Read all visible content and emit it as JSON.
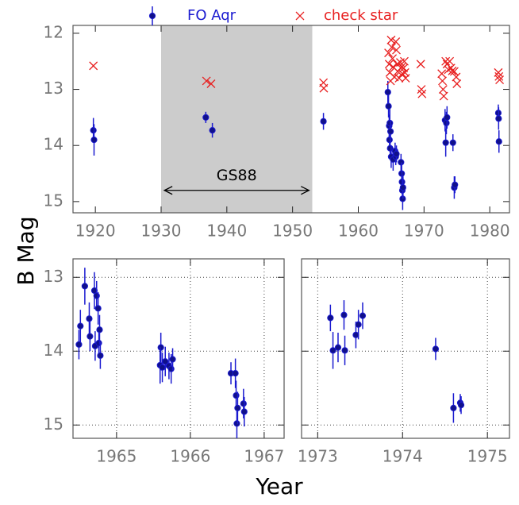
{
  "chart_data": [
    {
      "type": "scatter",
      "ylabel": "B Mag",
      "legend": "top",
      "grid": false,
      "xlim": [
        1916.6,
        1983
      ],
      "ylim": [
        15.2,
        11.86
      ],
      "xticks": [
        1920,
        1930,
        1940,
        1950,
        1960,
        1970,
        1980
      ],
      "yticks": [
        12,
        13,
        14,
        15
      ],
      "span": [
        1930,
        1953
      ],
      "span_color": "#cccccc",
      "annotation": {
        "text": "GS88",
        "x": [
          1930.5,
          1952.5
        ],
        "y": 14.8
      },
      "series": [
        {
          "name": "FO Aqr",
          "color": "#1a1ad0",
          "marker": "dot",
          "x": [
            1919.7,
            1919.8,
            1936.8,
            1937.8,
            1954.7,
            1964.5,
            1964.6,
            1964.7,
            1964.75,
            1964.8,
            1964.85,
            1964.9,
            1965.0,
            1965.3,
            1965.6,
            1965.7,
            1965.8,
            1966.5,
            1966.6,
            1966.65,
            1966.7,
            1966.75,
            1966.8,
            1973.2,
            1973.3,
            1973.4,
            1973.5,
            1974.4,
            1974.6,
            1974.7,
            1981.3,
            1981.35,
            1981.4
          ],
          "values": [
            13.73,
            13.9,
            13.5,
            13.73,
            13.57,
            13.05,
            13.3,
            13.65,
            13.9,
            13.6,
            14.05,
            13.75,
            14.2,
            14.25,
            14.1,
            14.2,
            14.15,
            14.3,
            14.5,
            14.65,
            14.8,
            14.95,
            14.75,
            13.55,
            13.95,
            13.6,
            13.5,
            13.95,
            14.75,
            14.7,
            13.42,
            13.52,
            13.93
          ],
          "errors": [
            0.22,
            0.28,
            0.1,
            0.13,
            0.15,
            0.2,
            0.2,
            0.2,
            0.2,
            0.25,
            0.2,
            0.2,
            0.2,
            0.2,
            0.15,
            0.15,
            0.15,
            0.15,
            0.2,
            0.2,
            0.2,
            0.2,
            0.2,
            0.2,
            0.25,
            0.2,
            0.2,
            0.15,
            0.2,
            0.15,
            0.15,
            0.2,
            0.2
          ]
        },
        {
          "name": "check star",
          "color": "#e82020",
          "marker": "cross",
          "x": [
            1919.7,
            1936.9,
            1937.6,
            1954.7,
            1954.75,
            1964.6,
            1964.7,
            1964.8,
            1964.9,
            1965.0,
            1965.1,
            1965.2,
            1965.3,
            1965.5,
            1965.7,
            1965.8,
            1965.9,
            1966.0,
            1966.2,
            1966.4,
            1966.6,
            1966.7,
            1966.9,
            1967.0,
            1967.1,
            1967.2,
            1969.5,
            1969.6,
            1969.7,
            1972.7,
            1972.8,
            1972.9,
            1973.0,
            1973.3,
            1973.5,
            1973.7,
            1973.9,
            1974.1,
            1974.3,
            1974.6,
            1974.9,
            1975.0,
            1981.3,
            1981.4,
            1981.5
          ],
          "values": [
            12.58,
            12.85,
            12.9,
            12.88,
            12.98,
            12.35,
            12.55,
            12.7,
            12.85,
            12.12,
            12.25,
            12.45,
            12.6,
            12.78,
            12.15,
            12.3,
            12.55,
            12.68,
            12.8,
            12.52,
            12.6,
            12.72,
            12.62,
            12.5,
            12.7,
            12.8,
            12.55,
            13.0,
            13.08,
            12.72,
            12.85,
            13.0,
            13.12,
            12.5,
            12.55,
            12.65,
            12.5,
            12.62,
            12.67,
            12.68,
            12.78,
            12.9,
            12.7,
            12.77,
            12.83
          ]
        }
      ]
    },
    {
      "type": "scatter",
      "xlabel": "Year",
      "grid": true,
      "xlim": [
        1964.41,
        1967.27
      ],
      "ylim": [
        15.18,
        12.75
      ],
      "xticks": [
        1965,
        1966,
        1967
      ],
      "yticks": [
        13,
        14,
        15
      ],
      "series": [
        {
          "color": "#1a1ad0",
          "marker": "dot",
          "x": [
            1964.49,
            1964.51,
            1964.57,
            1964.63,
            1964.64,
            1964.7,
            1964.71,
            1964.73,
            1964.75,
            1964.76,
            1964.77,
            1964.78,
            1965.6,
            1965.59,
            1965.62,
            1965.66,
            1965.71,
            1965.74,
            1965.76,
            1966.55,
            1966.61,
            1966.62,
            1966.63,
            1966.64,
            1966.72,
            1966.73
          ],
          "values": [
            13.91,
            13.66,
            13.12,
            13.56,
            13.8,
            13.18,
            13.93,
            13.25,
            13.42,
            13.89,
            13.71,
            14.06,
            13.95,
            14.19,
            14.22,
            14.14,
            14.2,
            14.24,
            14.11,
            14.3,
            14.3,
            14.6,
            14.98,
            14.77,
            14.71,
            14.82
          ],
          "errors": [
            0.2,
            0.22,
            0.25,
            0.22,
            0.2,
            0.25,
            0.2,
            0.2,
            0.22,
            0.2,
            0.2,
            0.18,
            0.2,
            0.25,
            0.2,
            0.2,
            0.18,
            0.2,
            0.15,
            0.15,
            0.2,
            0.2,
            0.2,
            0.22,
            0.2,
            0.2
          ]
        }
      ]
    },
    {
      "type": "scatter",
      "grid": true,
      "yticklabels": false,
      "xlim": [
        1972.81,
        1975.26
      ],
      "ylim": [
        15.18,
        12.75
      ],
      "xticks": [
        1973,
        1974,
        1975
      ],
      "yticks": [
        13,
        14,
        15
      ],
      "series": [
        {
          "color": "#1a1ad0",
          "marker": "dot",
          "x": [
            1973.15,
            1973.18,
            1973.24,
            1973.31,
            1973.32,
            1973.45,
            1973.48,
            1973.53,
            1974.39,
            1974.6,
            1974.68,
            1974.69
          ],
          "values": [
            13.55,
            13.99,
            13.95,
            13.51,
            13.99,
            13.78,
            13.64,
            13.52,
            13.97,
            14.77,
            14.7,
            14.73
          ],
          "errors": [
            0.18,
            0.25,
            0.2,
            0.2,
            0.2,
            0.18,
            0.2,
            0.18,
            0.15,
            0.2,
            0.12,
            0.12
          ]
        }
      ]
    }
  ]
}
